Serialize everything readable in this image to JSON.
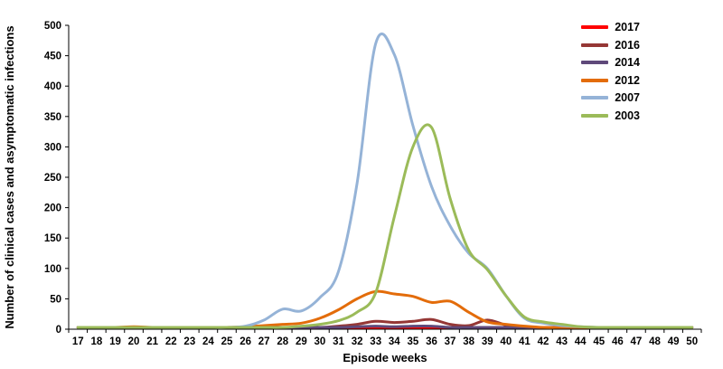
{
  "chart_data": {
    "type": "line",
    "title": "",
    "xlabel": "Episode weeks",
    "ylabel": "Number of clinical cases and asymptomatic infections",
    "ylim": [
      0,
      500
    ],
    "ytick_step": 50,
    "grid": false,
    "legend_position": "top-right",
    "categories": [
      "17",
      "18",
      "19",
      "20",
      "21",
      "22",
      "23",
      "24",
      "25",
      "26",
      "27",
      "28",
      "29",
      "30",
      "31",
      "32",
      "33",
      "34",
      "35",
      "36",
      "37",
      "38",
      "39",
      "40",
      "41",
      "42",
      "43",
      "44",
      "45",
      "46",
      "47",
      "48",
      "49",
      "50"
    ],
    "series": [
      {
        "name": "2017",
        "color": "#FF0000",
        "values": [
          0,
          0,
          0,
          0,
          0,
          0,
          0,
          0,
          0,
          0,
          0,
          0,
          0,
          1,
          1,
          1,
          2,
          1,
          2,
          1,
          1,
          1,
          1,
          1,
          0,
          0,
          0,
          0,
          0,
          0,
          0,
          0,
          0,
          0
        ]
      },
      {
        "name": "2016",
        "color": "#953735",
        "values": [
          0,
          0,
          0,
          0,
          0,
          0,
          0,
          0,
          0,
          0,
          1,
          1,
          2,
          3,
          5,
          8,
          13,
          11,
          13,
          16,
          8,
          6,
          15,
          7,
          3,
          1,
          1,
          0,
          0,
          0,
          0,
          0,
          0,
          0
        ]
      },
      {
        "name": "2014",
        "color": "#5F497A",
        "values": [
          0,
          0,
          0,
          0,
          0,
          0,
          0,
          0,
          0,
          0,
          0,
          0,
          1,
          1,
          2,
          4,
          5,
          4,
          5,
          5,
          3,
          3,
          2,
          2,
          1,
          1,
          0,
          0,
          0,
          0,
          0,
          0,
          0,
          0
        ]
      },
      {
        "name": "2012",
        "color": "#E36C0A",
        "values": [
          2,
          1,
          3,
          4,
          2,
          1,
          2,
          3,
          3,
          4,
          6,
          8,
          10,
          18,
          32,
          50,
          62,
          58,
          54,
          44,
          46,
          28,
          12,
          8,
          5,
          3,
          2,
          1,
          2,
          3,
          1,
          1,
          1,
          1
        ]
      },
      {
        "name": "2007",
        "color": "#95B3D7",
        "values": [
          1,
          1,
          1,
          1,
          1,
          1,
          2,
          2,
          3,
          5,
          15,
          33,
          30,
          52,
          95,
          240,
          470,
          452,
          335,
          235,
          170,
          125,
          100,
          55,
          18,
          10,
          6,
          4,
          3,
          2,
          2,
          2,
          2,
          2
        ]
      },
      {
        "name": "2003",
        "color": "#9BBB59",
        "values": [
          1,
          1,
          1,
          1,
          1,
          1,
          1,
          1,
          2,
          2,
          2,
          3,
          5,
          8,
          14,
          28,
          60,
          185,
          300,
          332,
          215,
          130,
          98,
          55,
          20,
          12,
          8,
          4,
          3,
          2,
          2,
          2,
          2,
          2
        ]
      }
    ]
  }
}
